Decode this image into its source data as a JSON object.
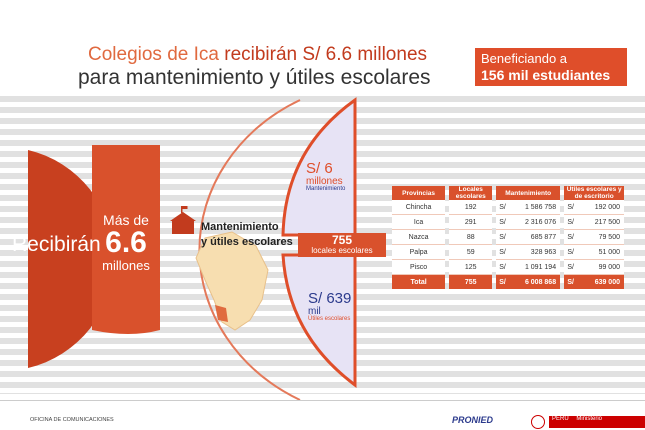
{
  "header": {
    "title_line1_a": "Colegios de Ica ",
    "title_line1_b": "recibirán S/ 6.6 millones",
    "title_line2": "para mantenimiento y útiles escolares",
    "badge_line1": "Beneficiando a",
    "badge_line2": "156 mil estudiantes"
  },
  "left": {
    "recibiran": "Recibirán",
    "mas_de": "Más de",
    "amount": "6.6",
    "millones": "millones"
  },
  "center": {
    "label_line1": "Mantenimiento",
    "label_line2": "y útiles escolares",
    "locales_num": "755",
    "locales_txt": "locales escolares"
  },
  "arc_top": {
    "amount": "S/ 6",
    "unit": "millones",
    "caption": "Mantenimiento"
  },
  "arc_bottom": {
    "amount": "S/ 639",
    "unit": "mil",
    "caption": "Útiles escolares"
  },
  "table": {
    "headers": [
      "Provincias",
      "Locales escolares",
      "Mantenimiento",
      "Útiles escolares y de escritorio"
    ],
    "rows": [
      [
        "Chincha",
        "192",
        "1 586 758",
        "192 000"
      ],
      [
        "Ica",
        "291",
        "2 316 076",
        "217 500"
      ],
      [
        "Nazca",
        "88",
        "685 877",
        "79 500"
      ],
      [
        "Palpa",
        "59",
        "328 963",
        "51 000"
      ],
      [
        "Pisco",
        "125",
        "1 091 194",
        "99 000"
      ]
    ],
    "total": [
      "Total",
      "755",
      "6 008 868",
      "639 000"
    ],
    "currency": "S/"
  },
  "footer": {
    "office": "OFICINA DE COMUNICACIONES",
    "brand": "PRONIED",
    "peru": "PERÚ",
    "ministerio": "Ministerio"
  },
  "colors": {
    "accent": "#d9512c",
    "dark_accent": "#c23b1e",
    "navy": "#2b3a8c",
    "map": "#f7deb0"
  }
}
